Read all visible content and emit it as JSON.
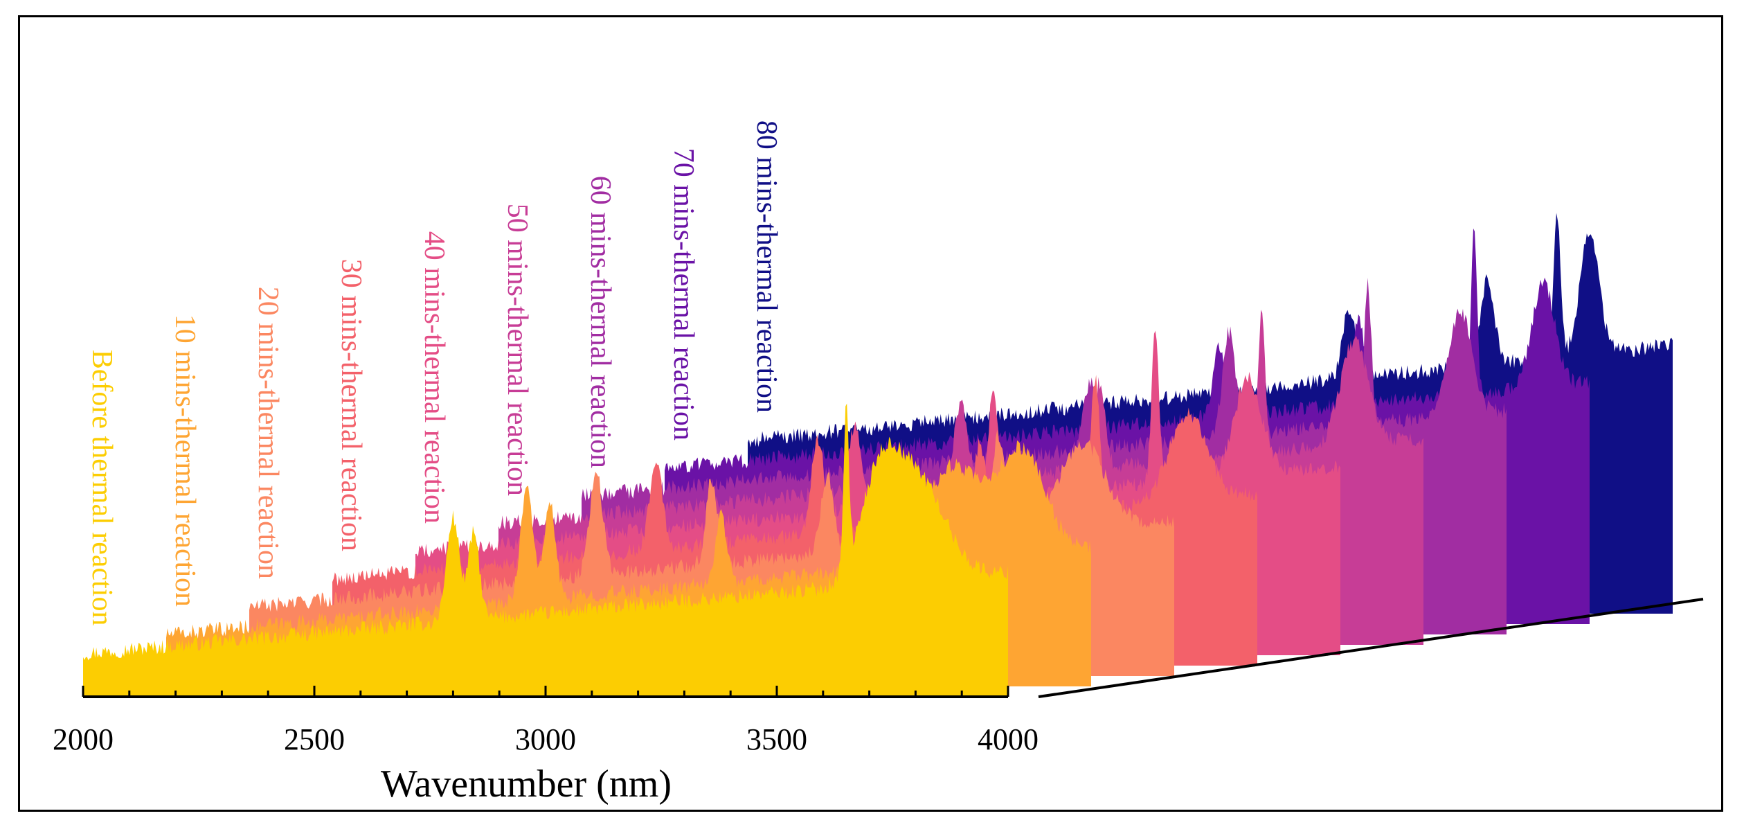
{
  "chart_data": {
    "type": "area",
    "style": "3d-waterfall",
    "title": "",
    "xlabel": "Wavenumber (nm)",
    "ylabel": "",
    "xlim": [
      2000,
      4000
    ],
    "x_ticks": [
      "2000",
      "2500",
      "3000",
      "3500",
      "4000"
    ],
    "series": [
      {
        "name": "Before thermal reaction",
        "color": "#fccd02",
        "baseline": 0.05,
        "peak_max": 0.22,
        "peaks": [
          {
            "x": 2800,
            "h": 0.12,
            "w": 14
          },
          {
            "x": 2845,
            "h": 0.1,
            "w": 12
          },
          {
            "x": 3650,
            "h": 0.18,
            "w": 6
          },
          {
            "x": 3720,
            "h": 0.1,
            "w": 40
          },
          {
            "x": 3800,
            "h": 0.12,
            "w": 60
          }
        ]
      },
      {
        "name": "10 mins-thermal reaction",
        "color": "#fea533",
        "baseline": 0.06,
        "peak_max": 0.24,
        "peaks": [
          {
            "x": 2780,
            "h": 0.13,
            "w": 14
          },
          {
            "x": 2830,
            "h": 0.11,
            "w": 12
          },
          {
            "x": 3200,
            "h": 0.08,
            "w": 12
          },
          {
            "x": 3700,
            "h": 0.11,
            "w": 60
          },
          {
            "x": 3850,
            "h": 0.12,
            "w": 50
          }
        ]
      },
      {
        "name": "20 mins-thermal reaction",
        "color": "#fb8761",
        "baseline": 0.08,
        "peak_max": 0.26,
        "peaks": [
          {
            "x": 2750,
            "h": 0.12,
            "w": 14
          },
          {
            "x": 3000,
            "h": 0.1,
            "w": 12
          },
          {
            "x": 3250,
            "h": 0.09,
            "w": 14
          },
          {
            "x": 3620,
            "h": 0.12,
            "w": 14
          },
          {
            "x": 3800,
            "h": 0.1,
            "w": 50
          }
        ]
      },
      {
        "name": "30 mins-thermal reaction",
        "color": "#f3616a",
        "baseline": 0.1,
        "peak_max": 0.28,
        "peaks": [
          {
            "x": 2700,
            "h": 0.1,
            "w": 14
          },
          {
            "x": 3050,
            "h": 0.11,
            "w": 14
          },
          {
            "x": 3400,
            "h": 0.09,
            "w": 12
          },
          {
            "x": 3650,
            "h": 0.15,
            "w": 10
          },
          {
            "x": 3850,
            "h": 0.1,
            "w": 40
          }
        ]
      },
      {
        "name": "40 mins-thermal reaction",
        "color": "#e44d86",
        "baseline": 0.12,
        "peak_max": 0.3,
        "peaks": [
          {
            "x": 2950,
            "h": 0.1,
            "w": 14
          },
          {
            "x": 3250,
            "h": 0.12,
            "w": 12
          },
          {
            "x": 3600,
            "h": 0.18,
            "w": 8
          },
          {
            "x": 3800,
            "h": 0.11,
            "w": 30
          }
        ]
      },
      {
        "name": "50 mins-thermal reaction",
        "color": "#c73d96",
        "baseline": 0.14,
        "peak_max": 0.32,
        "peaks": [
          {
            "x": 3000,
            "h": 0.09,
            "w": 14
          },
          {
            "x": 3300,
            "h": 0.1,
            "w": 12
          },
          {
            "x": 3650,
            "h": 0.16,
            "w": 8
          },
          {
            "x": 3850,
            "h": 0.12,
            "w": 30
          }
        ]
      },
      {
        "name": "60 mins-thermal reaction",
        "color": "#a12da2",
        "baseline": 0.16,
        "peak_max": 0.34,
        "peaks": [
          {
            "x": 3100,
            "h": 0.08,
            "w": 14
          },
          {
            "x": 3400,
            "h": 0.12,
            "w": 14
          },
          {
            "x": 3700,
            "h": 0.16,
            "w": 8
          },
          {
            "x": 3900,
            "h": 0.12,
            "w": 25
          }
        ]
      },
      {
        "name": "70 mins-thermal reaction",
        "color": "#6a12a6",
        "baseline": 0.18,
        "peak_max": 0.36,
        "peaks": [
          {
            "x": 3200,
            "h": 0.08,
            "w": 14
          },
          {
            "x": 3500,
            "h": 0.1,
            "w": 14
          },
          {
            "x": 3750,
            "h": 0.2,
            "w": 6
          },
          {
            "x": 3900,
            "h": 0.12,
            "w": 25
          }
        ]
      },
      {
        "name": "80 mins-thermal reaction",
        "color": "#100f86",
        "baseline": 0.2,
        "peak_max": 0.4,
        "peaks": [
          {
            "x": 3300,
            "h": 0.08,
            "w": 14
          },
          {
            "x": 3600,
            "h": 0.1,
            "w": 14
          },
          {
            "x": 3750,
            "h": 0.16,
            "w": 8
          },
          {
            "x": 3820,
            "h": 0.14,
            "w": 20
          }
        ]
      }
    ]
  }
}
